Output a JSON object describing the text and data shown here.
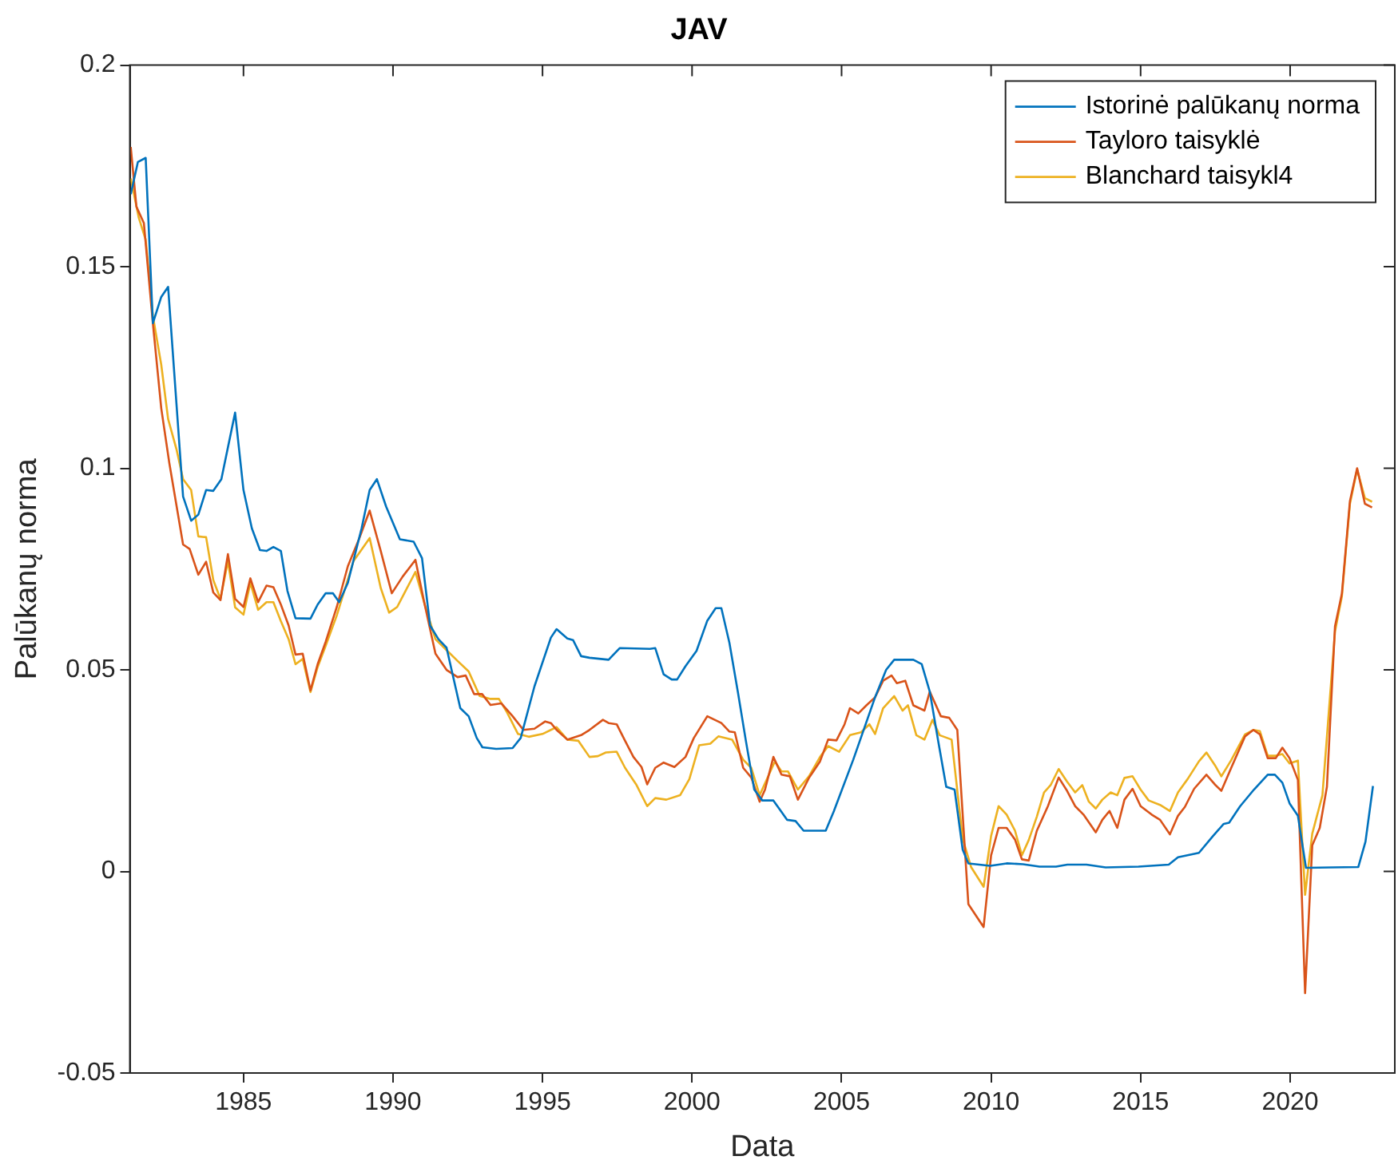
{
  "chart_data": {
    "type": "line",
    "title": "JAV",
    "xlabel": "Data",
    "ylabel": "Palūkanų norma",
    "xlim": [
      1981.2,
      2023.5
    ],
    "ylim": [
      -0.05,
      0.2
    ],
    "xticks": [
      1985,
      1990,
      1995,
      2000,
      2005,
      2010,
      2015,
      2020
    ],
    "yticks": [
      -0.05,
      0,
      0.05,
      0.1,
      0.15,
      0.2
    ],
    "grid": false,
    "legend": "top right",
    "line_style": "solid",
    "marker": "none",
    "series": [
      {
        "name": "Istorinė palūkanų norma",
        "color": "#0072bd",
        "x": [
          1981.23,
          1981.47,
          1981.73,
          1981.97,
          1982.25,
          1982.48,
          1982.98,
          1983.25,
          1983.49,
          1983.75,
          1983.99,
          1984.26,
          1984.72,
          1985.0,
          1985.28,
          1985.55,
          1985.77,
          1986.0,
          1986.25,
          1986.47,
          1986.74,
          1987.24,
          1987.48,
          1987.75,
          1987.99,
          1988.2,
          1988.49,
          1988.95,
          1989.22,
          1989.46,
          1989.77,
          1990.23,
          1990.69,
          1990.97,
          1991.24,
          1991.52,
          1991.79,
          1992.25,
          1992.53,
          1992.8,
          1992.99,
          1993.45,
          1994.0,
          1994.27,
          1994.73,
          1995.28,
          1995.47,
          1995.83,
          1996.02,
          1996.29,
          1996.57,
          1997.21,
          1997.58,
          1998.59,
          1998.77,
          1999.05,
          1999.32,
          1999.5,
          1999.78,
          2000.15,
          2000.51,
          2000.79,
          2000.98,
          2001.25,
          2001.53,
          2001.8,
          2002.08,
          2002.35,
          2002.72,
          2003.18,
          2003.46,
          2003.73,
          2004.47,
          2004.74,
          2005.39,
          2006.12,
          2006.49,
          2006.76,
          2007.4,
          2007.68,
          2007.95,
          2008.23,
          2008.5,
          2008.78,
          2009.05,
          2009.24,
          2009.97,
          2010.52,
          2011.07,
          2011.62,
          2012.17,
          2012.55,
          2013.19,
          2013.83,
          2014.93,
          2015.94,
          2016.25,
          2016.95,
          2017.41,
          2017.78,
          2017.96,
          2018.33,
          2018.79,
          2019.25,
          2019.49,
          2019.74,
          2019.98,
          2020.26,
          2020.53,
          2021.36,
          2022.28,
          2022.52,
          2022.77
        ],
        "values": [
          0.168,
          0.176,
          0.177,
          0.136,
          0.1425,
          0.145,
          0.093,
          0.087,
          0.0885,
          0.0946,
          0.0944,
          0.0973,
          0.1138,
          0.0946,
          0.0851,
          0.0797,
          0.0795,
          0.0805,
          0.0795,
          0.0696,
          0.0628,
          0.0627,
          0.0662,
          0.069,
          0.069,
          0.0668,
          0.0716,
          0.0851,
          0.0946,
          0.0973,
          0.0905,
          0.0824,
          0.0818,
          0.0777,
          0.061,
          0.0576,
          0.0555,
          0.0405,
          0.0385,
          0.0331,
          0.0308,
          0.0304,
          0.0306,
          0.0331,
          0.0459,
          0.058,
          0.0601,
          0.0578,
          0.0574,
          0.0534,
          0.053,
          0.0525,
          0.0554,
          0.0552,
          0.0554,
          0.0489,
          0.0476,
          0.0476,
          0.0509,
          0.0547,
          0.0622,
          0.0653,
          0.0653,
          0.0567,
          0.0446,
          0.0324,
          0.0203,
          0.0176,
          0.0176,
          0.0128,
          0.0125,
          0.0101,
          0.0101,
          0.0149,
          0.0277,
          0.0432,
          0.05,
          0.0525,
          0.0525,
          0.0514,
          0.0446,
          0.0324,
          0.021,
          0.0203,
          0.0054,
          0.002,
          0.0014,
          0.002,
          0.0018,
          0.0012,
          0.0012,
          0.0017,
          0.0017,
          0.001,
          0.0012,
          0.0017,
          0.0035,
          0.0046,
          0.0087,
          0.0118,
          0.0121,
          0.0162,
          0.0203,
          0.024,
          0.024,
          0.022,
          0.0169,
          0.0138,
          0.0009,
          0.001,
          0.0011,
          0.0074,
          0.0212
        ]
      },
      {
        "name": "Tayloro taisyklė",
        "color": "#d95319",
        "x": [
          1981.23,
          1981.42,
          1981.67,
          1981.97,
          1982.25,
          1982.52,
          1982.98,
          1983.2,
          1983.49,
          1983.75,
          1983.99,
          1984.23,
          1984.48,
          1984.72,
          1985.0,
          1985.23,
          1985.49,
          1985.77,
          1986.0,
          1986.25,
          1986.51,
          1986.74,
          1986.98,
          1987.24,
          1987.48,
          1987.75,
          1988.12,
          1988.49,
          1988.86,
          1989.22,
          1989.59,
          1989.96,
          1990.32,
          1990.75,
          1991.06,
          1991.42,
          1991.79,
          1992.16,
          1992.43,
          1992.71,
          1992.98,
          1993.26,
          1993.62,
          1993.99,
          1994.36,
          1994.73,
          1995.09,
          1995.28,
          1995.47,
          1995.83,
          1996.29,
          1996.57,
          1997.02,
          1997.21,
          1997.48,
          1997.76,
          1998.04,
          1998.31,
          1998.5,
          1998.77,
          1999.05,
          1999.41,
          1999.78,
          2000.06,
          2000.51,
          2000.98,
          2001.25,
          2001.43,
          2001.71,
          2001.98,
          2002.26,
          2002.44,
          2002.72,
          2002.99,
          2003.27,
          2003.54,
          2003.91,
          2004.28,
          2004.55,
          2004.83,
          2005.1,
          2005.28,
          2005.56,
          2005.83,
          2006.12,
          2006.39,
          2006.67,
          2006.85,
          2007.13,
          2007.4,
          2007.77,
          2007.95,
          2008.32,
          2008.6,
          2008.87,
          2009.24,
          2009.75,
          2010.0,
          2010.25,
          2010.52,
          2010.8,
          2011.03,
          2011.26,
          2011.53,
          2011.9,
          2012.26,
          2012.54,
          2012.81,
          2013.09,
          2013.5,
          2013.72,
          2013.96,
          2014.22,
          2014.46,
          2014.73,
          2015.0,
          2015.37,
          2015.65,
          2015.98,
          2016.25,
          2016.48,
          2016.79,
          2017.2,
          2017.48,
          2017.7,
          2018.03,
          2018.49,
          2018.77,
          2018.99,
          2019.25,
          2019.52,
          2019.74,
          2019.98,
          2020.26,
          2020.5,
          2020.74,
          2020.99,
          2021.23,
          2021.5,
          2021.73,
          2022.0,
          2022.24,
          2022.5,
          2022.74
        ],
        "values": [
          0.1797,
          0.1649,
          0.1608,
          0.136,
          0.1149,
          0.1013,
          0.0811,
          0.08,
          0.0736,
          0.0768,
          0.0692,
          0.0673,
          0.0787,
          0.0676,
          0.0656,
          0.0727,
          0.0668,
          0.0709,
          0.0705,
          0.0662,
          0.061,
          0.0538,
          0.054,
          0.0449,
          0.0514,
          0.057,
          0.0656,
          0.0757,
          0.0824,
          0.0895,
          0.0795,
          0.069,
          0.0731,
          0.0773,
          0.0662,
          0.054,
          0.05,
          0.0482,
          0.0486,
          0.044,
          0.044,
          0.0413,
          0.0417,
          0.0386,
          0.0351,
          0.0354,
          0.0372,
          0.0368,
          0.0351,
          0.0327,
          0.0338,
          0.0351,
          0.0376,
          0.0368,
          0.0365,
          0.0324,
          0.0284,
          0.0259,
          0.0216,
          0.0257,
          0.027,
          0.0259,
          0.0284,
          0.0331,
          0.0385,
          0.0368,
          0.0347,
          0.0345,
          0.0257,
          0.0233,
          0.0173,
          0.0203,
          0.0284,
          0.024,
          0.0236,
          0.0178,
          0.0232,
          0.0273,
          0.0327,
          0.0325,
          0.0365,
          0.0405,
          0.0392,
          0.0412,
          0.0432,
          0.0473,
          0.0486,
          0.0467,
          0.0473,
          0.0412,
          0.0399,
          0.0446,
          0.0385,
          0.0381,
          0.0351,
          -0.0081,
          -0.0138,
          0.004,
          0.0108,
          0.0108,
          0.0079,
          0.003,
          0.0027,
          0.0101,
          0.0162,
          0.0233,
          0.02,
          0.0162,
          0.0141,
          0.0097,
          0.0128,
          0.015,
          0.0108,
          0.0178,
          0.0205,
          0.0162,
          0.0141,
          0.0128,
          0.0092,
          0.0138,
          0.016,
          0.0205,
          0.024,
          0.0216,
          0.02,
          0.0257,
          0.0335,
          0.0351,
          0.034,
          0.0281,
          0.0281,
          0.0307,
          0.0281,
          0.0227,
          -0.0302,
          0.0065,
          0.0108,
          0.021,
          0.0608,
          0.0689,
          0.0919,
          0.1,
          0.0912,
          0.0903
        ]
      },
      {
        "name": "Blanchard taisykl4",
        "color": "#edb120",
        "x": [
          1981.23,
          1981.5,
          1981.73,
          1981.97,
          1982.25,
          1982.48,
          1982.76,
          1982.98,
          1983.25,
          1983.49,
          1983.75,
          1983.99,
          1984.23,
          1984.48,
          1984.72,
          1985.0,
          1985.23,
          1985.49,
          1985.77,
          1986.0,
          1986.25,
          1986.51,
          1986.74,
          1986.98,
          1987.24,
          1987.48,
          1987.75,
          1988.12,
          1988.68,
          1989.22,
          1989.59,
          1989.87,
          1990.14,
          1990.75,
          1991.06,
          1991.42,
          1991.79,
          1992.16,
          1992.53,
          1992.9,
          1993.26,
          1993.54,
          1993.81,
          1994.18,
          1994.54,
          1995.0,
          1995.47,
          1995.83,
          1996.2,
          1996.57,
          1996.85,
          1997.12,
          1997.48,
          1997.76,
          1998.13,
          1998.5,
          1998.77,
          1999.14,
          1999.6,
          1999.91,
          2000.24,
          2000.61,
          2000.88,
          2001.34,
          2001.71,
          2001.98,
          2002.26,
          2002.77,
          2002.99,
          2003.21,
          2003.54,
          2003.91,
          2004.28,
          2004.55,
          2004.92,
          2005.28,
          2005.65,
          2005.93,
          2006.12,
          2006.39,
          2006.76,
          2007.04,
          2007.22,
          2007.5,
          2007.77,
          2008.04,
          2008.28,
          2008.68,
          2009.05,
          2009.33,
          2009.75,
          2010.0,
          2010.25,
          2010.52,
          2010.8,
          2011.03,
          2011.26,
          2011.53,
          2011.77,
          2011.99,
          2012.26,
          2012.54,
          2012.81,
          2013.05,
          2013.27,
          2013.5,
          2013.72,
          2014.0,
          2014.22,
          2014.46,
          2014.73,
          2015.0,
          2015.27,
          2015.65,
          2015.98,
          2016.25,
          2016.58,
          2016.95,
          2017.2,
          2017.48,
          2017.7,
          2018.03,
          2018.49,
          2018.77,
          2018.99,
          2019.25,
          2019.52,
          2019.74,
          2019.98,
          2020.26,
          2020.5,
          2020.74,
          2021.08,
          2021.5,
          2021.73,
          2022.0,
          2022.24,
          2022.5,
          2022.74
        ],
        "values": [
          0.1719,
          0.1621,
          0.1567,
          0.1378,
          0.1257,
          0.1122,
          0.1047,
          0.0973,
          0.0946,
          0.0831,
          0.0829,
          0.0723,
          0.0676,
          0.077,
          0.0655,
          0.0637,
          0.0716,
          0.0649,
          0.0668,
          0.0668,
          0.0621,
          0.0576,
          0.0514,
          0.0527,
          0.0445,
          0.0507,
          0.056,
          0.0635,
          0.077,
          0.0827,
          0.0703,
          0.0642,
          0.0656,
          0.0743,
          0.0662,
          0.0576,
          0.0549,
          0.0522,
          0.0496,
          0.0435,
          0.0428,
          0.0428,
          0.0395,
          0.0341,
          0.0334,
          0.0341,
          0.0358,
          0.0327,
          0.0324,
          0.0284,
          0.0286,
          0.0295,
          0.0297,
          0.0257,
          0.0216,
          0.0162,
          0.0182,
          0.0178,
          0.0189,
          0.0229,
          0.0313,
          0.0317,
          0.0335,
          0.0327,
          0.0277,
          0.0257,
          0.0189,
          0.0273,
          0.0248,
          0.0248,
          0.0203,
          0.0236,
          0.0284,
          0.0311,
          0.0297,
          0.0338,
          0.0345,
          0.0365,
          0.0341,
          0.0405,
          0.0435,
          0.0399,
          0.0412,
          0.0338,
          0.0327,
          0.0376,
          0.0338,
          0.0327,
          0.0081,
          0.0011,
          -0.0038,
          0.0088,
          0.0162,
          0.0141,
          0.0101,
          0.004,
          0.0078,
          0.0136,
          0.0196,
          0.0214,
          0.0254,
          0.0223,
          0.0196,
          0.0214,
          0.0173,
          0.0156,
          0.0178,
          0.0196,
          0.0189,
          0.0232,
          0.0236,
          0.0203,
          0.0176,
          0.0165,
          0.015,
          0.0196,
          0.023,
          0.0273,
          0.0295,
          0.0264,
          0.0236,
          0.0276,
          0.034,
          0.0351,
          0.0348,
          0.0287,
          0.0287,
          0.0291,
          0.0268,
          0.0275,
          -0.0058,
          0.0094,
          0.0189,
          0.0595,
          0.0682,
          0.0912,
          0.0997,
          0.0926,
          0.0917
        ]
      }
    ]
  }
}
